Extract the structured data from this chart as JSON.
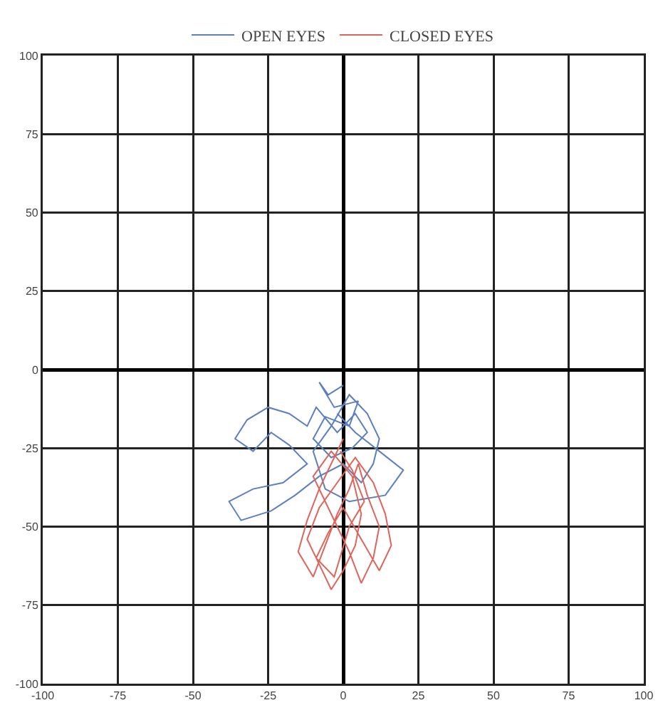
{
  "chart_data": {
    "type": "line",
    "xlim": [
      -100,
      100
    ],
    "ylim": [
      -100,
      100
    ],
    "xticks": [
      -100,
      -75,
      -50,
      -25,
      0,
      25,
      50,
      75,
      100
    ],
    "yticks": [
      -100,
      -75,
      -50,
      -25,
      0,
      25,
      50,
      75,
      100
    ],
    "grid": true,
    "legend": "top",
    "marker": "none",
    "line_style": "solid",
    "series": [
      {
        "name": "OPEN EYES",
        "color": "#5b7fc0",
        "x": [
          0,
          -5,
          -8,
          -3,
          5,
          2,
          -6,
          -10,
          -4,
          3,
          8,
          4,
          -2,
          -9,
          -12,
          -18,
          -25,
          -32,
          -36,
          -30,
          -24,
          -18,
          -12,
          -20,
          -30,
          -38,
          -34,
          -24,
          -16,
          -8,
          0,
          6,
          10,
          12,
          8,
          2,
          -4,
          -10,
          -6,
          2,
          14,
          20,
          12,
          4,
          -2
        ],
        "values": [
          -5,
          -8,
          -4,
          -12,
          -10,
          -18,
          -15,
          -22,
          -28,
          -25,
          -20,
          -14,
          -20,
          -12,
          -18,
          -14,
          -12,
          -16,
          -22,
          -26,
          -20,
          -24,
          -30,
          -36,
          -38,
          -42,
          -48,
          -45,
          -40,
          -34,
          -30,
          -36,
          -30,
          -22,
          -14,
          -8,
          -18,
          -26,
          -38,
          -42,
          -40,
          -32,
          -26,
          -20,
          -14
        ]
      },
      {
        "name": "CLOSED EYES",
        "color": "#e0645a",
        "x": [
          0,
          -4,
          -8,
          -12,
          -15,
          -10,
          -6,
          -2,
          2,
          5,
          8,
          12,
          10,
          6,
          2,
          -2,
          -6,
          -10,
          -4,
          3,
          6,
          4,
          0,
          -4,
          -8,
          -12,
          -8,
          -2,
          4,
          10,
          14,
          16,
          12,
          6,
          0,
          -5,
          -9,
          -3,
          2,
          7,
          3,
          -1
        ],
        "values": [
          -22,
          -30,
          -38,
          -48,
          -58,
          -66,
          -56,
          -46,
          -38,
          -30,
          -40,
          -50,
          -60,
          -68,
          -58,
          -50,
          -42,
          -34,
          -26,
          -34,
          -46,
          -56,
          -64,
          -70,
          -62,
          -54,
          -44,
          -36,
          -28,
          -36,
          -46,
          -56,
          -64,
          -54,
          -44,
          -52,
          -60,
          -66,
          -50,
          -42,
          -32,
          -26
        ]
      }
    ]
  }
}
